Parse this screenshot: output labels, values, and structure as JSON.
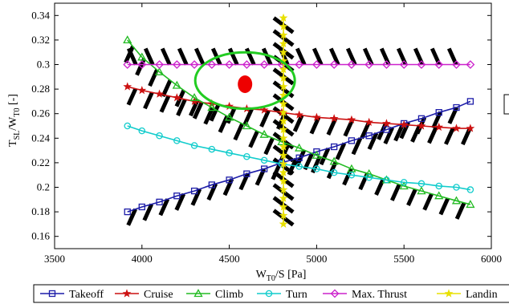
{
  "chart_data": {
    "type": "line",
    "title": "",
    "xlabel": "W",
    "xlabel_sub": "T0",
    "xlabel_suffix": "/S [Pa]",
    "ylabel_parts": {
      "t": "T",
      "sub1": "SL",
      "mid": "/W",
      "sub2": "T0",
      "suffix": " [-]"
    },
    "xlim": [
      3500,
      6000
    ],
    "ylim": [
      0.15,
      0.35
    ],
    "xticks": [
      3500,
      4000,
      4500,
      5000,
      5500,
      6000
    ],
    "yticks": [
      0.16,
      0.18,
      0.2,
      0.22,
      0.24,
      0.26,
      0.28,
      0.3,
      0.32,
      0.34
    ],
    "ytick_labels": [
      "0.16",
      "0.18",
      "0.2",
      "0.22",
      "0.24",
      "0.26",
      "0.28",
      "0.3",
      "0.32",
      "0.34"
    ],
    "grid": false,
    "legend_position": "bottom",
    "series": [
      {
        "name": "Takeoff",
        "color": "#1c1ca8",
        "marker": "square",
        "x": [
          3917,
          4000,
          4100,
          4200,
          4300,
          4400,
          4500,
          4600,
          4700,
          4800,
          4900,
          5000,
          5100,
          5200,
          5300,
          5400,
          5500,
          5600,
          5700,
          5800,
          5880
        ],
        "y": [
          0.18,
          0.184,
          0.188,
          0.193,
          0.197,
          0.202,
          0.206,
          0.211,
          0.215,
          0.22,
          0.224,
          0.229,
          0.233,
          0.238,
          0.242,
          0.247,
          0.252,
          0.256,
          0.261,
          0.265,
          0.27
        ]
      },
      {
        "name": "Cruise",
        "color": "#cc1111",
        "marker": "star",
        "x": [
          3917,
          4000,
          4100,
          4200,
          4300,
          4400,
          4500,
          4600,
          4700,
          4800,
          4900,
          5000,
          5100,
          5200,
          5300,
          5400,
          5500,
          5600,
          5700,
          5800,
          5880
        ],
        "y": [
          0.282,
          0.279,
          0.276,
          0.273,
          0.27,
          0.268,
          0.266,
          0.264,
          0.263,
          0.261,
          0.259,
          0.257,
          0.256,
          0.255,
          0.253,
          0.252,
          0.251,
          0.25,
          0.249,
          0.248,
          0.248
        ]
      },
      {
        "name": "Climb",
        "color": "#22bb22",
        "marker": "triangle",
        "x": [
          3917,
          4000,
          4100,
          4200,
          4300,
          4400,
          4500,
          4600,
          4700,
          4800,
          4900,
          5000,
          5100,
          5200,
          5300,
          5400,
          5500,
          5600,
          5700,
          5800,
          5880
        ],
        "y": [
          0.32,
          0.306,
          0.294,
          0.283,
          0.273,
          0.265,
          0.257,
          0.25,
          0.243,
          0.237,
          0.232,
          0.226,
          0.221,
          0.215,
          0.211,
          0.206,
          0.201,
          0.197,
          0.193,
          0.189,
          0.186
        ]
      },
      {
        "name": "Turn",
        "color": "#11cccc",
        "marker": "circle",
        "x": [
          3917,
          4000,
          4100,
          4200,
          4300,
          4400,
          4500,
          4600,
          4700,
          4800,
          4900,
          5000,
          5100,
          5200,
          5300,
          5400,
          5500,
          5600,
          5700,
          5800,
          5880
        ],
        "y": [
          0.25,
          0.246,
          0.242,
          0.238,
          0.234,
          0.231,
          0.228,
          0.225,
          0.222,
          0.219,
          0.217,
          0.215,
          0.212,
          0.21,
          0.208,
          0.206,
          0.204,
          0.203,
          0.201,
          0.2,
          0.198
        ]
      },
      {
        "name": "Max. Thrust",
        "color": "#cc22cc",
        "marker": "diamond",
        "x": [
          3917,
          4000,
          4100,
          4200,
          4300,
          4400,
          4500,
          4600,
          4700,
          4800,
          4900,
          5000,
          5100,
          5200,
          5300,
          5400,
          5500,
          5600,
          5700,
          5800,
          5880
        ],
        "y": [
          0.3,
          0.3,
          0.3,
          0.3,
          0.3,
          0.3,
          0.3,
          0.3,
          0.3,
          0.3,
          0.3,
          0.3,
          0.3,
          0.3,
          0.3,
          0.3,
          0.3,
          0.3,
          0.3,
          0.3,
          0.3
        ]
      },
      {
        "name": "Landing",
        "legend_label": "Landin",
        "color": "#e8e000",
        "marker": "star",
        "x": [
          4810,
          4810,
          4810,
          4810,
          4810,
          4810,
          4810,
          4810,
          4810,
          4810,
          4810,
          4810,
          4810,
          4810,
          4810,
          4810,
          4810,
          4810,
          4810,
          4810,
          4810,
          4810,
          4810,
          4810,
          4810
        ],
        "y": [
          0.17,
          0.177,
          0.184,
          0.191,
          0.198,
          0.205,
          0.212,
          0.219,
          0.226,
          0.233,
          0.24,
          0.247,
          0.254,
          0.261,
          0.268,
          0.275,
          0.282,
          0.289,
          0.296,
          0.303,
          0.31,
          0.317,
          0.324,
          0.331,
          0.338
        ]
      }
    ],
    "annotations": [
      {
        "type": "ellipse",
        "color": "#22cc22",
        "cx": 4590,
        "cy": 0.287,
        "rx": 285,
        "ry": 0.023
      },
      {
        "type": "dot",
        "color": "#ee0000",
        "x": 4590,
        "y": 0.284
      },
      {
        "type": "hatch",
        "on": "Takeoff",
        "side": "below",
        "color": "#000000"
      },
      {
        "type": "hatch",
        "on": "Cruise",
        "side": "below",
        "color": "#000000"
      },
      {
        "type": "hatch",
        "on": "Climb",
        "side": "below",
        "color": "#000000"
      },
      {
        "type": "hatch",
        "on": "Max. Thrust",
        "side": "above",
        "color": "#000000"
      },
      {
        "type": "hatch",
        "on": "Landing",
        "side": "both",
        "color": "#000000"
      }
    ]
  }
}
